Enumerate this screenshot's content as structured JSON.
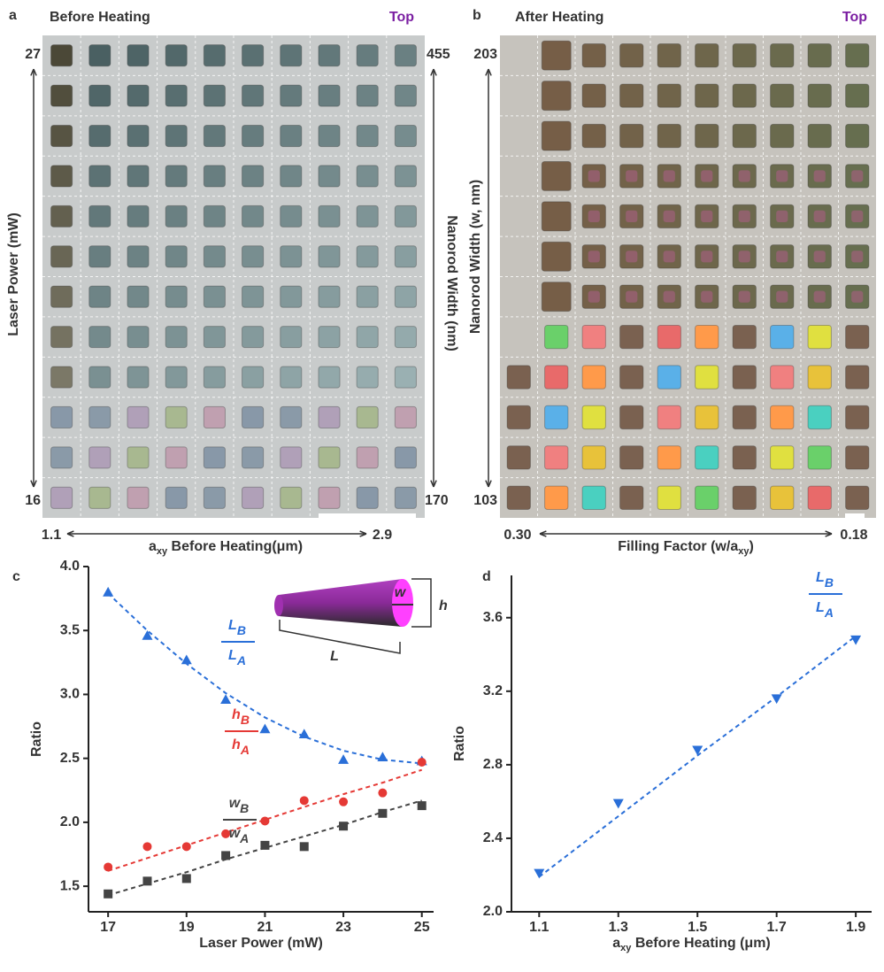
{
  "panel_a": {
    "label": "a",
    "title": "Before Heating",
    "corner": "Top",
    "left_top": "27",
    "left_bottom": "16",
    "left_axis": "Laser Power (mW)",
    "right_top": "455",
    "right_bottom": "170",
    "right_axis": "Nanorod Width (nm)",
    "bottom_left": "1.1",
    "bottom_right": "2.9",
    "bottom_axis": {
      "main": "a",
      "sub": "xy",
      "rest": " Before Heating(μm)"
    }
  },
  "panel_b": {
    "label": "b",
    "title": "After Heating",
    "corner": "Top",
    "left_top": "203",
    "left_bottom": "103",
    "left_axis": "Nanorod Width (w, nm)",
    "bottom_left": "0.30",
    "bottom_right": "0.18",
    "bottom_axis": {
      "main": "Filling Factor (w/a",
      "sub": "xy",
      "rest": ")"
    }
  },
  "chart_data": [
    {
      "type": "scatter",
      "panel_label": "c",
      "x_label": "Laser Power (mW)",
      "y_label": "Ratio",
      "xlim": [
        16.5,
        25.3
      ],
      "ylim": [
        1.3,
        4.0
      ],
      "xticks": [
        17,
        19,
        21,
        23,
        25
      ],
      "yticks": [
        1.5,
        {
          "value": 2,
          "label": "2.0"
        },
        2.5,
        {
          "value": 3,
          "label": "3.0"
        },
        3.5,
        {
          "value": 4,
          "label": "4.0"
        }
      ],
      "x": [
        17,
        18,
        19,
        20,
        21,
        22,
        23,
        24,
        25
      ],
      "series": [
        {
          "marker": "triangle-up",
          "color": "#2a6fd8",
          "label": {
            "num": "L",
            "num_sub": "B",
            "den": "L",
            "den_sub": "A"
          },
          "values": [
            3.8,
            3.46,
            3.27,
            2.96,
            2.73,
            2.69,
            2.49,
            2.51,
            2.48
          ],
          "fit": [
            3.79,
            3.5,
            3.24,
            3.01,
            2.82,
            2.67,
            2.56,
            2.49,
            2.46
          ]
        },
        {
          "marker": "circle",
          "color": "#e53935",
          "label": {
            "num": "h",
            "num_sub": "B",
            "den": "h",
            "den_sub": "A"
          },
          "values": [
            1.65,
            1.81,
            1.81,
            1.91,
            2.01,
            2.17,
            2.16,
            2.23,
            2.47
          ],
          "fit": [
            1.62,
            1.72,
            1.82,
            1.92,
            2.02,
            2.12,
            2.22,
            2.31,
            2.41
          ]
        },
        {
          "marker": "square",
          "color": "#444444",
          "label": {
            "num": "w",
            "num_sub": "B",
            "den": "w",
            "den_sub": "A"
          },
          "values": [
            1.44,
            1.54,
            1.56,
            1.74,
            1.82,
            1.81,
            1.97,
            2.07,
            2.13
          ],
          "fit": [
            1.43,
            1.52,
            1.61,
            1.71,
            1.8,
            1.89,
            1.98,
            2.08,
            2.17
          ]
        }
      ],
      "inset": {
        "w": "w",
        "h": "h",
        "L": "L"
      }
    },
    {
      "type": "scatter",
      "panel_label": "d",
      "x_label": {
        "main": "a",
        "sub": "xy",
        "rest": " Before Heating (μm)"
      },
      "y_label": "Ratio",
      "xlim": [
        1.03,
        1.94
      ],
      "ylim": [
        2.0,
        3.83
      ],
      "xticks": [
        1.1,
        1.3,
        1.5,
        1.7,
        1.9
      ],
      "yticks": [
        {
          "value": 2,
          "label": "2.0"
        },
        2.4,
        2.8,
        3.2,
        3.6
      ],
      "x": [
        1.1,
        1.3,
        1.5,
        1.7,
        1.9
      ],
      "series": [
        {
          "marker": "triangle-down",
          "color": "#2a6fd8",
          "label": {
            "num": "L",
            "num_sub": "B",
            "den": "L",
            "den_sub": "A"
          },
          "values": [
            2.21,
            2.59,
            2.88,
            3.16,
            3.48
          ],
          "fit": [
            2.19,
            2.52,
            2.85,
            3.17,
            3.5
          ]
        }
      ]
    }
  ]
}
